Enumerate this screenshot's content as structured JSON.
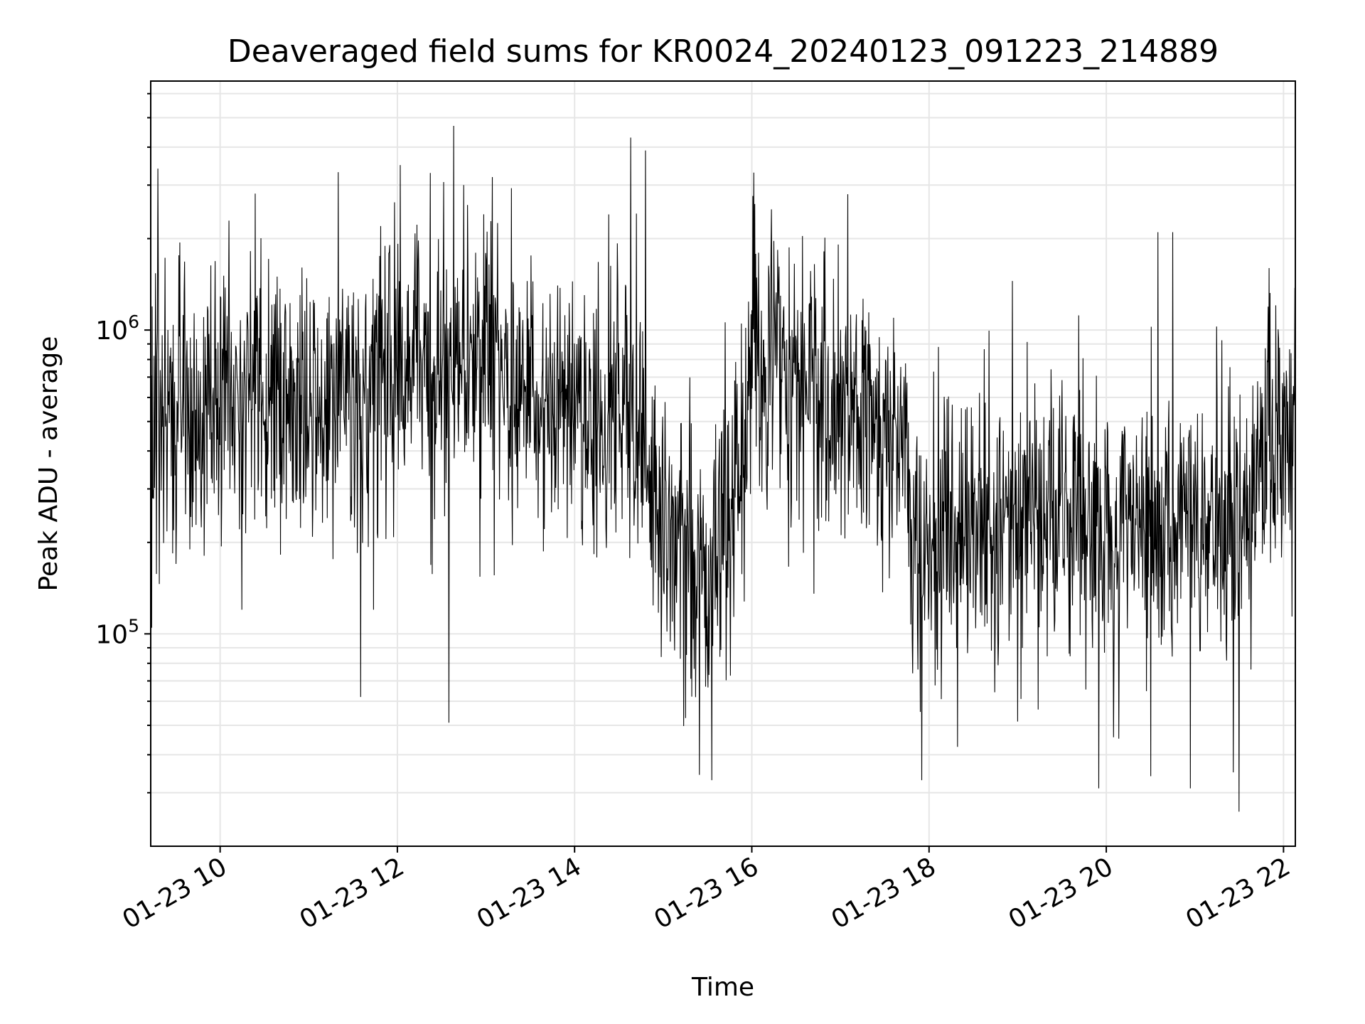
{
  "chart_data": {
    "type": "line",
    "title": "Deaveraged field sums for KR0024_20240123_091223_214889",
    "xlabel": "Time",
    "ylabel": "Peak ADU - average",
    "x_range": [
      "2024-01-23 09:13",
      "2024-01-23 22:08"
    ],
    "y_range": [
      20000,
      6600000
    ],
    "y_scale": "log",
    "grid": true,
    "x_ticks": [
      {
        "value": "2024-01-23 10:00",
        "label": "01-23 10"
      },
      {
        "value": "2024-01-23 12:00",
        "label": "01-23 12"
      },
      {
        "value": "2024-01-23 14:00",
        "label": "01-23 14"
      },
      {
        "value": "2024-01-23 16:00",
        "label": "01-23 16"
      },
      {
        "value": "2024-01-23 18:00",
        "label": "01-23 18"
      },
      {
        "value": "2024-01-23 20:00",
        "label": "01-23 20"
      },
      {
        "value": "2024-01-23 22:00",
        "label": "01-23 22"
      }
    ],
    "y_ticks": [
      {
        "value": 100000,
        "base": "10",
        "exp": "5"
      },
      {
        "value": 1000000,
        "base": "10",
        "exp": "6"
      }
    ],
    "series": [
      {
        "color": "#000000",
        "profile": [
          {
            "t": "2024-01-23 09:13",
            "median": 470000
          },
          {
            "t": "2024-01-23 10:00",
            "median": 600000
          },
          {
            "t": "2024-01-23 11:00",
            "median": 560000
          },
          {
            "t": "2024-01-23 12:00",
            "median": 750000
          },
          {
            "t": "2024-01-23 13:00",
            "median": 750000
          },
          {
            "t": "2024-01-23 14:00",
            "median": 560000
          },
          {
            "t": "2024-01-23 14:45",
            "median": 520000
          },
          {
            "t": "2024-01-23 15:00",
            "median": 220000
          },
          {
            "t": "2024-01-23 15:30",
            "median": 160000
          },
          {
            "t": "2024-01-23 15:50",
            "median": 280000
          },
          {
            "t": "2024-01-23 16:00",
            "median": 750000
          },
          {
            "t": "2024-01-23 17:00",
            "median": 600000
          },
          {
            "t": "2024-01-23 17:45",
            "median": 380000
          },
          {
            "t": "2024-01-23 17:50",
            "median": 180000
          },
          {
            "t": "2024-01-23 19:00",
            "median": 250000
          },
          {
            "t": "2024-01-23 20:00",
            "median": 220000
          },
          {
            "t": "2024-01-23 21:00",
            "median": 230000
          },
          {
            "t": "2024-01-23 21:30",
            "median": 220000
          },
          {
            "t": "2024-01-23 21:45",
            "median": 430000
          },
          {
            "t": "2024-01-23 22:08",
            "median": 500000
          }
        ],
        "spikes_high": [
          {
            "t": "2024-01-23 09:18",
            "value": 3400000
          },
          {
            "t": "2024-01-23 12:38",
            "value": 4700000
          },
          {
            "t": "2024-01-23 14:38",
            "value": 4300000
          },
          {
            "t": "2024-01-23 14:48",
            "value": 3900000
          },
          {
            "t": "2024-01-23 16:02",
            "value": 2600000
          },
          {
            "t": "2024-01-23 17:05",
            "value": 2800000
          },
          {
            "t": "2024-01-23 20:35",
            "value": 2100000
          },
          {
            "t": "2024-01-23 20:45",
            "value": 2100000
          }
        ],
        "spikes_low": [
          {
            "t": "2024-01-23 11:35",
            "value": 62000
          },
          {
            "t": "2024-01-23 12:35",
            "value": 51000
          },
          {
            "t": "2024-01-23 15:33",
            "value": 33000
          },
          {
            "t": "2024-01-23 17:55",
            "value": 33000
          },
          {
            "t": "2024-01-23 19:55",
            "value": 31000
          },
          {
            "t": "2024-01-23 20:30",
            "value": 34000
          },
          {
            "t": "2024-01-23 20:57",
            "value": 31000
          },
          {
            "t": "2024-01-23 21:26",
            "value": 35000
          },
          {
            "t": "2024-01-23 21:30",
            "value": 26000
          }
        ]
      }
    ]
  }
}
